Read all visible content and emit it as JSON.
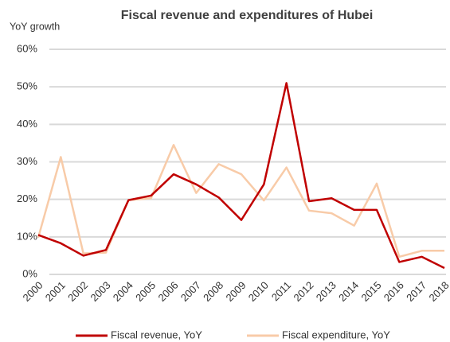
{
  "chart_data": {
    "type": "line",
    "title": "Fiscal revenue and expenditures of Hubei",
    "y_label": "YoY growth",
    "categories": [
      "2000",
      "2001",
      "2002",
      "2003",
      "2004",
      "2005",
      "2006",
      "2007",
      "2008",
      "2009",
      "2010",
      "2011",
      "2012",
      "2013",
      "2014",
      "2015",
      "2016",
      "2017",
      "2018"
    ],
    "series": [
      {
        "name": "Fiscal revenue, YoY",
        "color": "#c00000",
        "values": [
          10.5,
          8.3,
          5,
          6.5,
          19.8,
          21,
          26.7,
          24,
          20.5,
          14.5,
          24,
          51,
          19.5,
          20.3,
          17.2,
          17.2,
          3.3,
          4.7,
          1.7
        ]
      },
      {
        "name": "Fiscal expenditure, YoY",
        "color": "#f8cba8",
        "values": [
          9.8,
          31.3,
          5.6,
          5.8,
          19.8,
          20.3,
          34.5,
          21.7,
          29.4,
          26.7,
          19.7,
          28.5,
          17,
          16.3,
          13,
          24.2,
          4.7,
          6.3,
          6.3
        ]
      }
    ],
    "ylim": [
      0,
      60
    ],
    "yticks": [
      {
        "value": 0,
        "label": "0%"
      },
      {
        "value": 10,
        "label": "10%"
      },
      {
        "value": 20,
        "label": "20%"
      },
      {
        "value": 30,
        "label": "30%"
      },
      {
        "value": 40,
        "label": "40%"
      },
      {
        "value": 50,
        "label": "50%"
      },
      {
        "value": 60,
        "label": "60%"
      }
    ],
    "grid": true,
    "legend": "bottom"
  }
}
